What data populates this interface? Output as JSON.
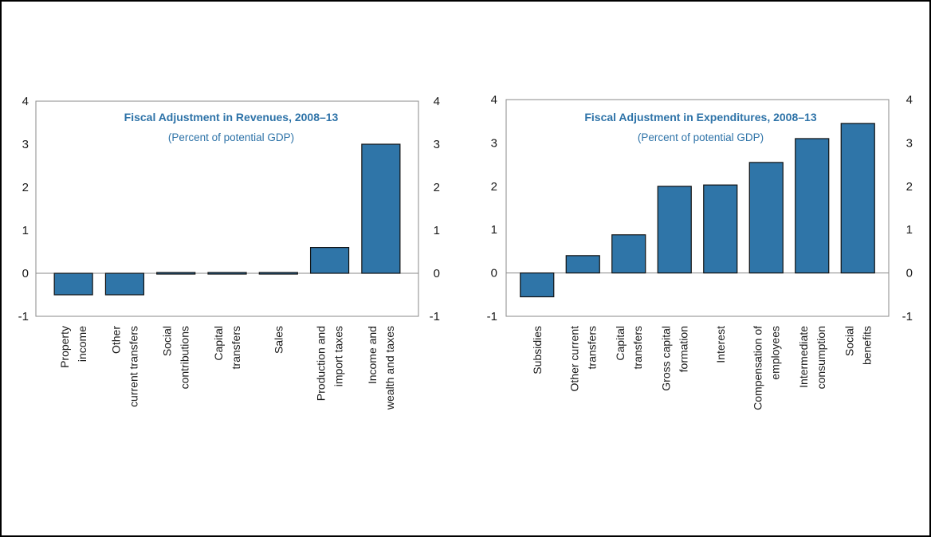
{
  "chart_data": [
    {
      "type": "bar",
      "title": "Fiscal Adjustment in Revenues, 2008–13",
      "subtitle": "(Percent of potential GDP)",
      "categories": [
        [
          "Property",
          "income"
        ],
        [
          "Other",
          "current transfers"
        ],
        [
          "Social",
          "contributions"
        ],
        [
          "Capital",
          "transfers"
        ],
        [
          "Sales"
        ],
        [
          "Production and",
          "import taxes"
        ],
        [
          "Income and",
          "wealth and taxes"
        ]
      ],
      "values": [
        -0.5,
        -0.5,
        -0.03,
        -0.03,
        0.03,
        0.6,
        3.0
      ],
      "ylim": [
        -1,
        4
      ],
      "yticks": [
        "-1",
        "0",
        "1",
        "2",
        "3",
        "4"
      ],
      "xlabel": "",
      "ylabel": "",
      "grid": false,
      "legend": "none"
    },
    {
      "type": "bar",
      "title": "Fiscal Adjustment in Expenditures, 2008–13",
      "subtitle": "(Percent of potential GDP)",
      "categories": [
        [
          "Subsidies"
        ],
        [
          "Other current",
          "transfers"
        ],
        [
          "Capital",
          "transfers"
        ],
        [
          "Gross capital",
          "formation"
        ],
        [
          "Interest"
        ],
        [
          "Compensation of",
          "employees"
        ],
        [
          "Intermediate",
          "consumption"
        ],
        [
          "Social",
          "benefits"
        ]
      ],
      "values": [
        -0.55,
        0.4,
        0.88,
        2.0,
        2.03,
        2.55,
        3.1,
        3.45
      ],
      "ylim": [
        -1,
        4
      ],
      "yticks": [
        "-1",
        "0",
        "1",
        "2",
        "3",
        "4"
      ],
      "xlabel": "",
      "ylabel": "",
      "grid": false,
      "legend": "none"
    }
  ],
  "colors": {
    "bar": "#2f75a8",
    "bar_stroke": "#111111",
    "title": "#2e73a8",
    "axis": "#8a8a8a",
    "text": "#1a1a1a"
  }
}
